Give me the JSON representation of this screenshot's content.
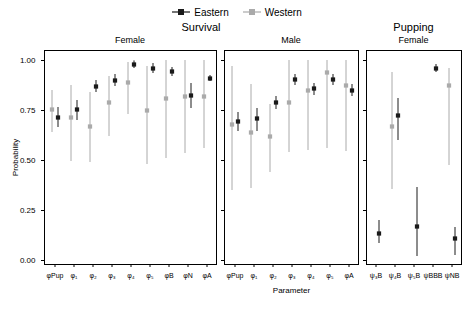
{
  "chart_data": [
    {
      "type": "errorbar",
      "title": "Survival",
      "subtitle": "Female",
      "ylabel": "Probability",
      "categories": [
        "φPup",
        "φ₁",
        "φ₂",
        "φ₃",
        "φ₄",
        "φ₅",
        "φB",
        "φN",
        "φA"
      ],
      "series": [
        {
          "name": "Eastern",
          "color": "#1a1a1a",
          "marker": "square",
          "values": [
            0.715,
            0.755,
            0.87,
            0.9,
            0.98,
            0.96,
            0.945,
            0.825,
            0.91
          ],
          "lo": [
            0.665,
            0.7,
            0.84,
            0.87,
            0.96,
            0.935,
            0.92,
            0.76,
            0.895
          ],
          "hi": [
            0.765,
            0.8,
            0.9,
            0.93,
            0.998,
            0.985,
            0.965,
            0.885,
            0.925
          ]
        },
        {
          "name": "Western",
          "color": "#aaaaaa",
          "marker": "square",
          "values": [
            0.755,
            0.715,
            0.67,
            0.79,
            0.89,
            0.75,
            0.81,
            0.82,
            0.82
          ],
          "lo": [
            0.64,
            0.495,
            0.49,
            0.62,
            0.73,
            0.48,
            0.51,
            0.535,
            0.56
          ],
          "hi": [
            0.85,
            0.875,
            0.84,
            0.92,
            0.99,
            0.97,
            1.0,
            1.0,
            1.0
          ]
        }
      ],
      "ylim": [
        -0.02,
        1.05
      ],
      "yticks": [
        {
          "value": 0,
          "label": "0.00"
        },
        0.25,
        {
          "value": 0.5,
          "label": "0.50"
        },
        0.75,
        {
          "value": 1,
          "label": "1.00"
        }
      ],
      "grid": false,
      "legend": "top"
    },
    {
      "type": "errorbar",
      "subtitle": "Male",
      "xlabel": "Parameter",
      "categories": [
        "φPup",
        "φ₁",
        "φ₂",
        "φ₃",
        "φ₄",
        "φ₅",
        "φA"
      ],
      "series": [
        {
          "name": "Eastern",
          "color": "#1a1a1a",
          "marker": "square",
          "values": [
            0.695,
            0.71,
            0.79,
            0.905,
            0.86,
            0.905,
            0.85
          ],
          "lo": [
            0.645,
            0.645,
            0.755,
            0.875,
            0.825,
            0.875,
            0.82
          ],
          "hi": [
            0.74,
            0.76,
            0.82,
            0.93,
            0.885,
            0.93,
            0.88
          ]
        },
        {
          "name": "Western",
          "color": "#aaaaaa",
          "marker": "square",
          "values": [
            0.68,
            0.64,
            0.62,
            0.79,
            0.85,
            0.94,
            0.875
          ],
          "lo": [
            0.35,
            0.36,
            0.44,
            0.54,
            0.55,
            0.56,
            0.545
          ],
          "hi": [
            0.97,
            0.88,
            0.78,
            1.0,
            1.0,
            1.0,
            1.0
          ]
        }
      ],
      "ylim": [
        -0.02,
        1.05
      ],
      "yticks": [
        {
          "value": 0,
          "label": "0.00"
        },
        0.25,
        {
          "value": 0.5,
          "label": "0.50"
        },
        0.75,
        {
          "value": 1,
          "label": "1.00"
        }
      ],
      "grid": false,
      "tick_labels": "x"
    },
    {
      "type": "errorbar",
      "title": "Pupping",
      "subtitle": "Female",
      "categories": [
        "ψ₃B",
        "ψ₄B",
        "ψ₅B",
        "ψBBB",
        "ψNB"
      ],
      "series": [
        {
          "name": "Eastern",
          "color": "#1a1a1a",
          "marker": "square",
          "values": [
            0.135,
            0.725,
            0.17,
            0.96,
            0.11
          ],
          "lo": [
            0.085,
            0.6,
            0.02,
            0.94,
            0.025
          ],
          "hi": [
            0.2,
            0.81,
            0.365,
            0.98,
            0.165
          ]
        },
        {
          "name": "Western",
          "color": "#aaaaaa",
          "marker": "square",
          "values": [
            null,
            0.67,
            null,
            null,
            0.875
          ],
          "lo": [
            null,
            0.355,
            null,
            null,
            0.475
          ],
          "hi": [
            null,
            0.94,
            null,
            null,
            0.96
          ]
        }
      ],
      "ylim": [
        -0.02,
        1.05
      ],
      "yticks": [
        {
          "value": 0,
          "label": "0.00"
        },
        0.25,
        {
          "value": 0.5,
          "label": "0.50"
        },
        0.75,
        {
          "value": 1,
          "label": "1.00"
        }
      ],
      "grid": false,
      "tick_labels": "x"
    }
  ]
}
